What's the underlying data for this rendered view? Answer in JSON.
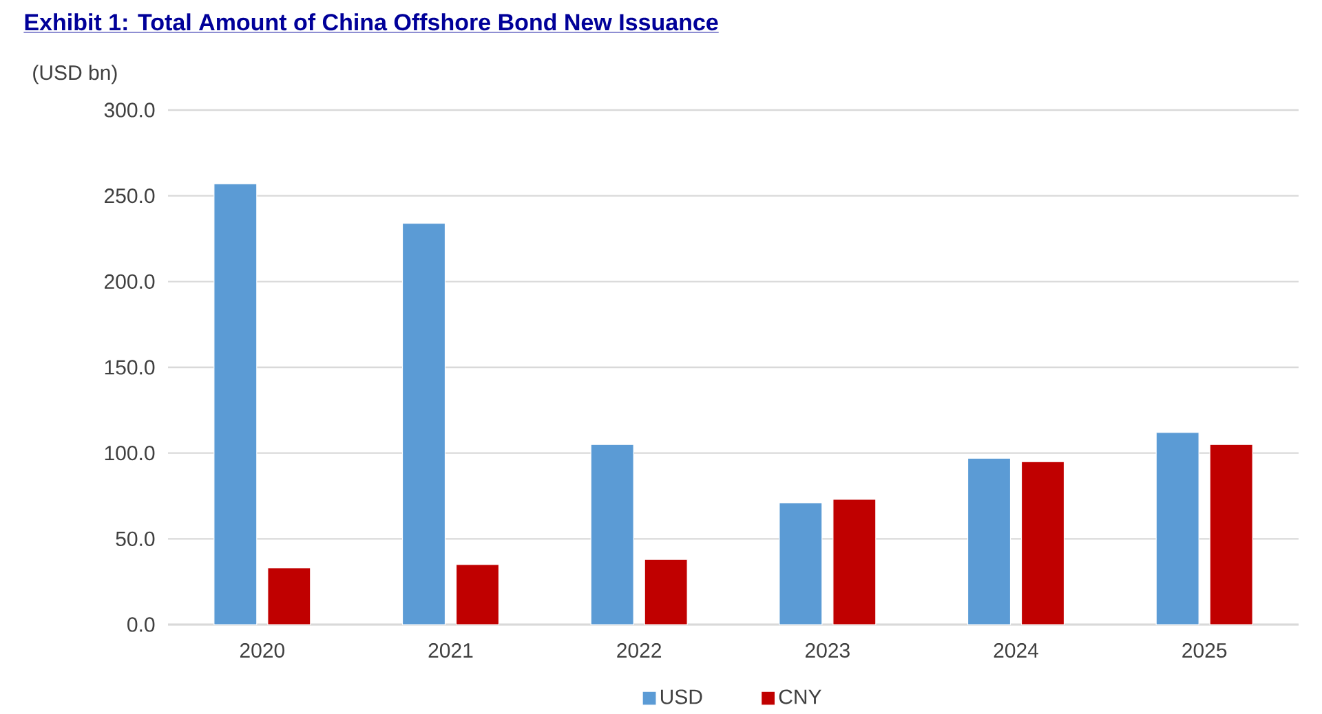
{
  "chart_data": {
    "type": "bar",
    "title": "Exhibit 1: Total Amount of China Offshore Bond New Issuance",
    "ylabel": "(USD bn)",
    "categories": [
      "2020",
      "2021",
      "2022",
      "2023",
      "2024",
      "2025"
    ],
    "series": [
      {
        "name": "USD",
        "color": "#5b9bd5",
        "values": [
          257,
          234,
          105,
          71,
          97,
          112
        ]
      },
      {
        "name": "CNY",
        "color": "#c00000",
        "values": [
          33,
          35,
          38,
          73,
          95,
          105
        ]
      }
    ],
    "ylim": [
      0,
      300
    ],
    "yticks": [
      {
        "value": 0,
        "label": "0.0"
      },
      {
        "value": 50,
        "label": "50.0"
      },
      {
        "value": 100,
        "label": "100.0"
      },
      {
        "value": 150,
        "label": "150.0"
      },
      {
        "value": 200,
        "label": "200.0"
      },
      {
        "value": 250,
        "label": "250.0"
      },
      {
        "value": 300,
        "label": "300.0"
      }
    ],
    "grid": "y",
    "legend": "bottom"
  }
}
